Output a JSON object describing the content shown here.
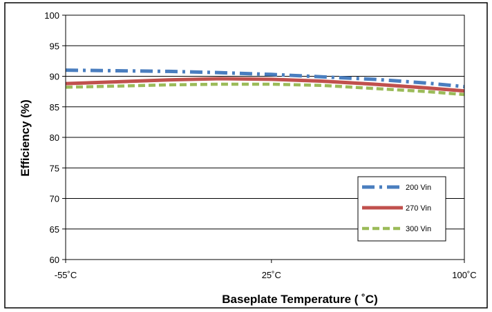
{
  "chart_data": {
    "type": "line",
    "xlabel": "Baseplate Temperature ( ˚C)",
    "ylabel": "Efficiency (%)",
    "x_ticks": [
      {
        "value": -55,
        "label": "-55˚C"
      },
      {
        "value": 25,
        "label": "25˚C"
      },
      {
        "value": 100,
        "label": "100˚C"
      }
    ],
    "y_ticks": [
      60,
      65,
      70,
      75,
      80,
      85,
      90,
      95,
      100
    ],
    "xlim": [
      -55,
      100
    ],
    "ylim": [
      60,
      100
    ],
    "grid": "horizontal",
    "legend_position": "bottom-right",
    "series": [
      {
        "name": "200 Vin",
        "color": "#4a7ebf",
        "style": "dash-dot",
        "x": [
          -55,
          -35,
          -15,
          5,
          25,
          45,
          65,
          85,
          100
        ],
        "y": [
          91.0,
          90.9,
          90.8,
          90.6,
          90.3,
          89.9,
          89.5,
          88.9,
          88.3
        ]
      },
      {
        "name": "270 Vin",
        "color": "#c0504d",
        "style": "solid",
        "x": [
          -55,
          -35,
          -15,
          5,
          25,
          45,
          65,
          85,
          100
        ],
        "y": [
          88.8,
          89.1,
          89.4,
          89.6,
          89.5,
          89.2,
          88.7,
          88.1,
          87.6
        ]
      },
      {
        "name": "300 Vin",
        "color": "#9bbb59",
        "style": "dashed",
        "x": [
          -55,
          -35,
          -15,
          5,
          25,
          45,
          65,
          85,
          100
        ],
        "y": [
          88.2,
          88.4,
          88.6,
          88.7,
          88.7,
          88.5,
          88.0,
          87.5,
          87.0
        ]
      }
    ]
  }
}
